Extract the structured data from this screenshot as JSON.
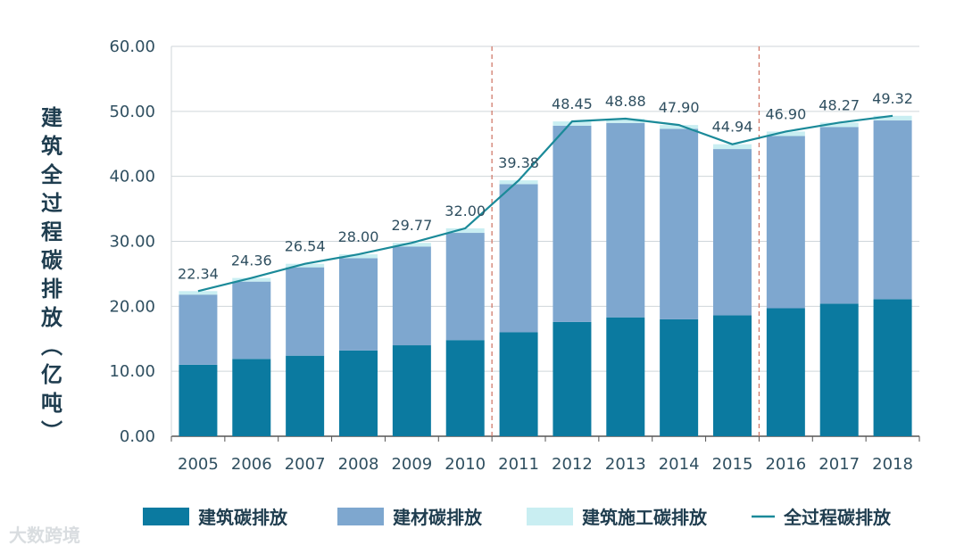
{
  "chart_data": {
    "type": "bar",
    "stacked": true,
    "ylabel": "建筑全过程碳排放（亿吨）",
    "ylim": [
      0,
      60
    ],
    "yticks": [
      "0.00",
      "10.00",
      "20.00",
      "30.00",
      "40.00",
      "50.00",
      "60.00"
    ],
    "categories": [
      "2005",
      "2006",
      "2007",
      "2008",
      "2009",
      "2010",
      "2011",
      "2012",
      "2013",
      "2014",
      "2015",
      "2016",
      "2017",
      "2018"
    ],
    "series": [
      {
        "name": "建筑碳排放",
        "color": "#0b7aa0",
        "values": [
          11.0,
          11.9,
          12.4,
          13.2,
          14.0,
          14.8,
          16.0,
          17.6,
          18.3,
          18.0,
          18.6,
          19.7,
          20.4,
          21.1
        ]
      },
      {
        "name": "建材碳排放",
        "color": "#7ea7cf",
        "values": [
          10.8,
          11.9,
          13.6,
          14.2,
          15.2,
          16.5,
          22.8,
          30.2,
          29.9,
          29.3,
          25.6,
          26.5,
          27.2,
          27.5
        ]
      },
      {
        "name": "建筑施工碳排放",
        "color": "#c9eef2",
        "values": [
          0.54,
          0.56,
          0.54,
          0.6,
          0.57,
          0.7,
          0.58,
          0.65,
          0.68,
          0.6,
          0.74,
          0.7,
          0.67,
          0.72
        ]
      }
    ],
    "line": {
      "name": "全过程碳排放",
      "color": "#1b8a99",
      "labels": [
        "22.34",
        "24.36",
        "26.54",
        "28.00",
        "29.77",
        "32.00",
        "39.38",
        "48.45",
        "48.88",
        "47.90",
        "44.94",
        "46.90",
        "48.27",
        "49.32"
      ],
      "values": [
        22.34,
        24.36,
        26.54,
        28.0,
        29.77,
        32.0,
        39.38,
        48.45,
        48.88,
        47.9,
        44.94,
        46.9,
        48.27,
        49.32
      ]
    },
    "dividers_after": [
      "2010",
      "2015"
    ],
    "grid": "horizontal",
    "legend_position": "bottom"
  },
  "watermark": "大数跨境"
}
